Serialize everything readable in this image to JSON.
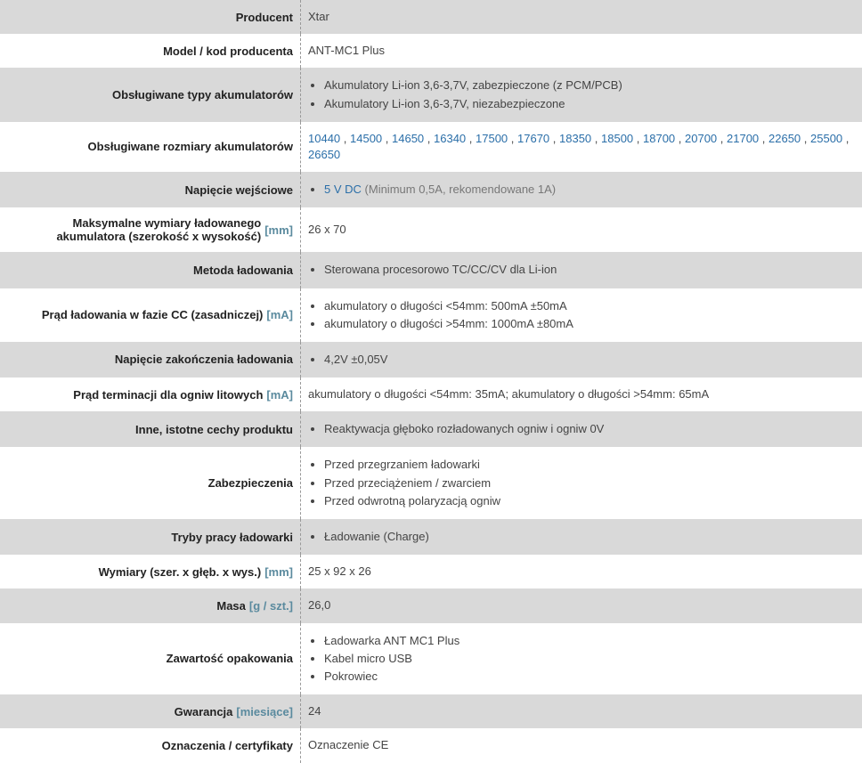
{
  "rows": [
    {
      "alt": true,
      "label": "Producent",
      "unit": "",
      "type": "text",
      "value": "Xtar"
    },
    {
      "alt": false,
      "label": "Model / kod producenta",
      "unit": "",
      "type": "text",
      "value": "ANT-MC1 Plus"
    },
    {
      "alt": true,
      "label": "Obsługiwane typy akumulatorów",
      "unit": "",
      "type": "list",
      "items": [
        "Akumulatory Li-ion 3,6-3,7V, zabezpieczone (z PCM/PCB)",
        "Akumulatory Li-ion 3,6-3,7V, niezabezpieczone"
      ]
    },
    {
      "alt": false,
      "label": "Obsługiwane rozmiary akumulatorów",
      "unit": "",
      "type": "sizes",
      "sizes": [
        "10440",
        "14500",
        "14650",
        "16340",
        "17500",
        "17670",
        "18350",
        "18500",
        "18700",
        "20700",
        "21700",
        "22650",
        "25500",
        "26650"
      ]
    },
    {
      "alt": true,
      "label": "Napięcie wejściowe",
      "unit": "",
      "type": "voltage",
      "main": "5 V DC",
      "note": "(Minimum 0,5A, rekomendowane 1A)"
    },
    {
      "alt": false,
      "label": "Maksymalne wymiary ładowanego akumulatora (szerokość x wysokość)",
      "unit": "[mm]",
      "type": "text",
      "value": "26 x 70"
    },
    {
      "alt": true,
      "label": "Metoda ładowania",
      "unit": "",
      "type": "list",
      "items": [
        "Sterowana procesorowo TC/CC/CV dla Li-ion"
      ]
    },
    {
      "alt": false,
      "label": "Prąd ładowania w fazie CC (zasadniczej)",
      "unit": "[mA]",
      "type": "list",
      "items": [
        "akumulatory o długości <54mm: 500mA ±50mA",
        "akumulatory o długości >54mm: 1000mA ±80mA"
      ]
    },
    {
      "alt": true,
      "label": "Napięcie zakończenia ładowania",
      "unit": "",
      "type": "list",
      "items": [
        "4,2V ±0,05V"
      ]
    },
    {
      "alt": false,
      "label": "Prąd terminacji dla ogniw litowych",
      "unit": "[mA]",
      "type": "text",
      "value": "akumulatory o długości <54mm: 35mA; akumulatory o długości >54mm: 65mA"
    },
    {
      "alt": true,
      "label": "Inne, istotne cechy produktu",
      "unit": "",
      "type": "list",
      "items": [
        "Reaktywacja głęboko rozładowanych ogniw i ogniw 0V"
      ]
    },
    {
      "alt": false,
      "label": "Zabezpieczenia",
      "unit": "",
      "type": "list",
      "items": [
        "Przed przegrzaniem ładowarki",
        "Przed przeciążeniem / zwarciem",
        "Przed odwrotną polaryzacją ogniw"
      ]
    },
    {
      "alt": true,
      "label": "Tryby pracy ładowarki",
      "unit": "",
      "type": "list",
      "items": [
        "Ładowanie (Charge)"
      ]
    },
    {
      "alt": false,
      "label": "Wymiary (szer. x głęb. x wys.)",
      "unit": "[mm]",
      "type": "text",
      "value": "25 x 92 x 26"
    },
    {
      "alt": true,
      "label": "Masa",
      "unit": "[g / szt.]",
      "type": "text",
      "value": "26,0"
    },
    {
      "alt": false,
      "label": "Zawartość opakowania",
      "unit": "",
      "type": "list",
      "items": [
        "Ładowarka ANT MC1 Plus",
        "Kabel micro USB",
        "Pokrowiec"
      ]
    },
    {
      "alt": true,
      "label": "Gwarancja",
      "unit": "[miesiące]",
      "type": "text",
      "value": "24"
    },
    {
      "alt": false,
      "label": "Oznaczenia / certyfikaty",
      "unit": "",
      "type": "text",
      "value": "Oznaczenie CE"
    }
  ]
}
